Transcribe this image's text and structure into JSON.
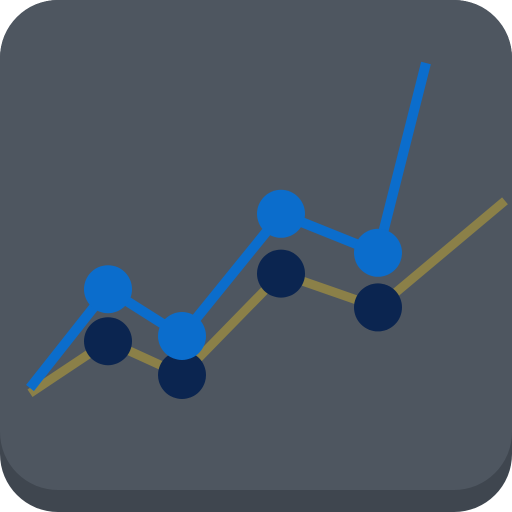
{
  "icon": {
    "name": "line-chart-icon",
    "colors": {
      "tile": "#4e5660",
      "tile_shadow": "#3f464f",
      "series_a_line": "#0b6dcc",
      "series_a_points": "#0b6dcc",
      "series_b_line": "#8b8048",
      "series_b_points": "#0b2550"
    },
    "series": [
      {
        "points": [
          [
            0,
            0.2
          ],
          [
            1,
            0.58
          ],
          [
            2,
            0.4
          ],
          [
            3,
            0.87
          ],
          [
            4,
            0.72
          ],
          [
            5,
            1.45
          ]
        ],
        "marker_indices": [
          1,
          2,
          3,
          4
        ]
      },
      {
        "points": [
          [
            0,
            0.18
          ],
          [
            1,
            0.38
          ],
          [
            2,
            0.25
          ],
          [
            3,
            0.64
          ],
          [
            4,
            0.51
          ],
          [
            5,
            0.92
          ]
        ],
        "marker_indices": [
          1,
          2,
          3,
          4
        ]
      }
    ]
  }
}
